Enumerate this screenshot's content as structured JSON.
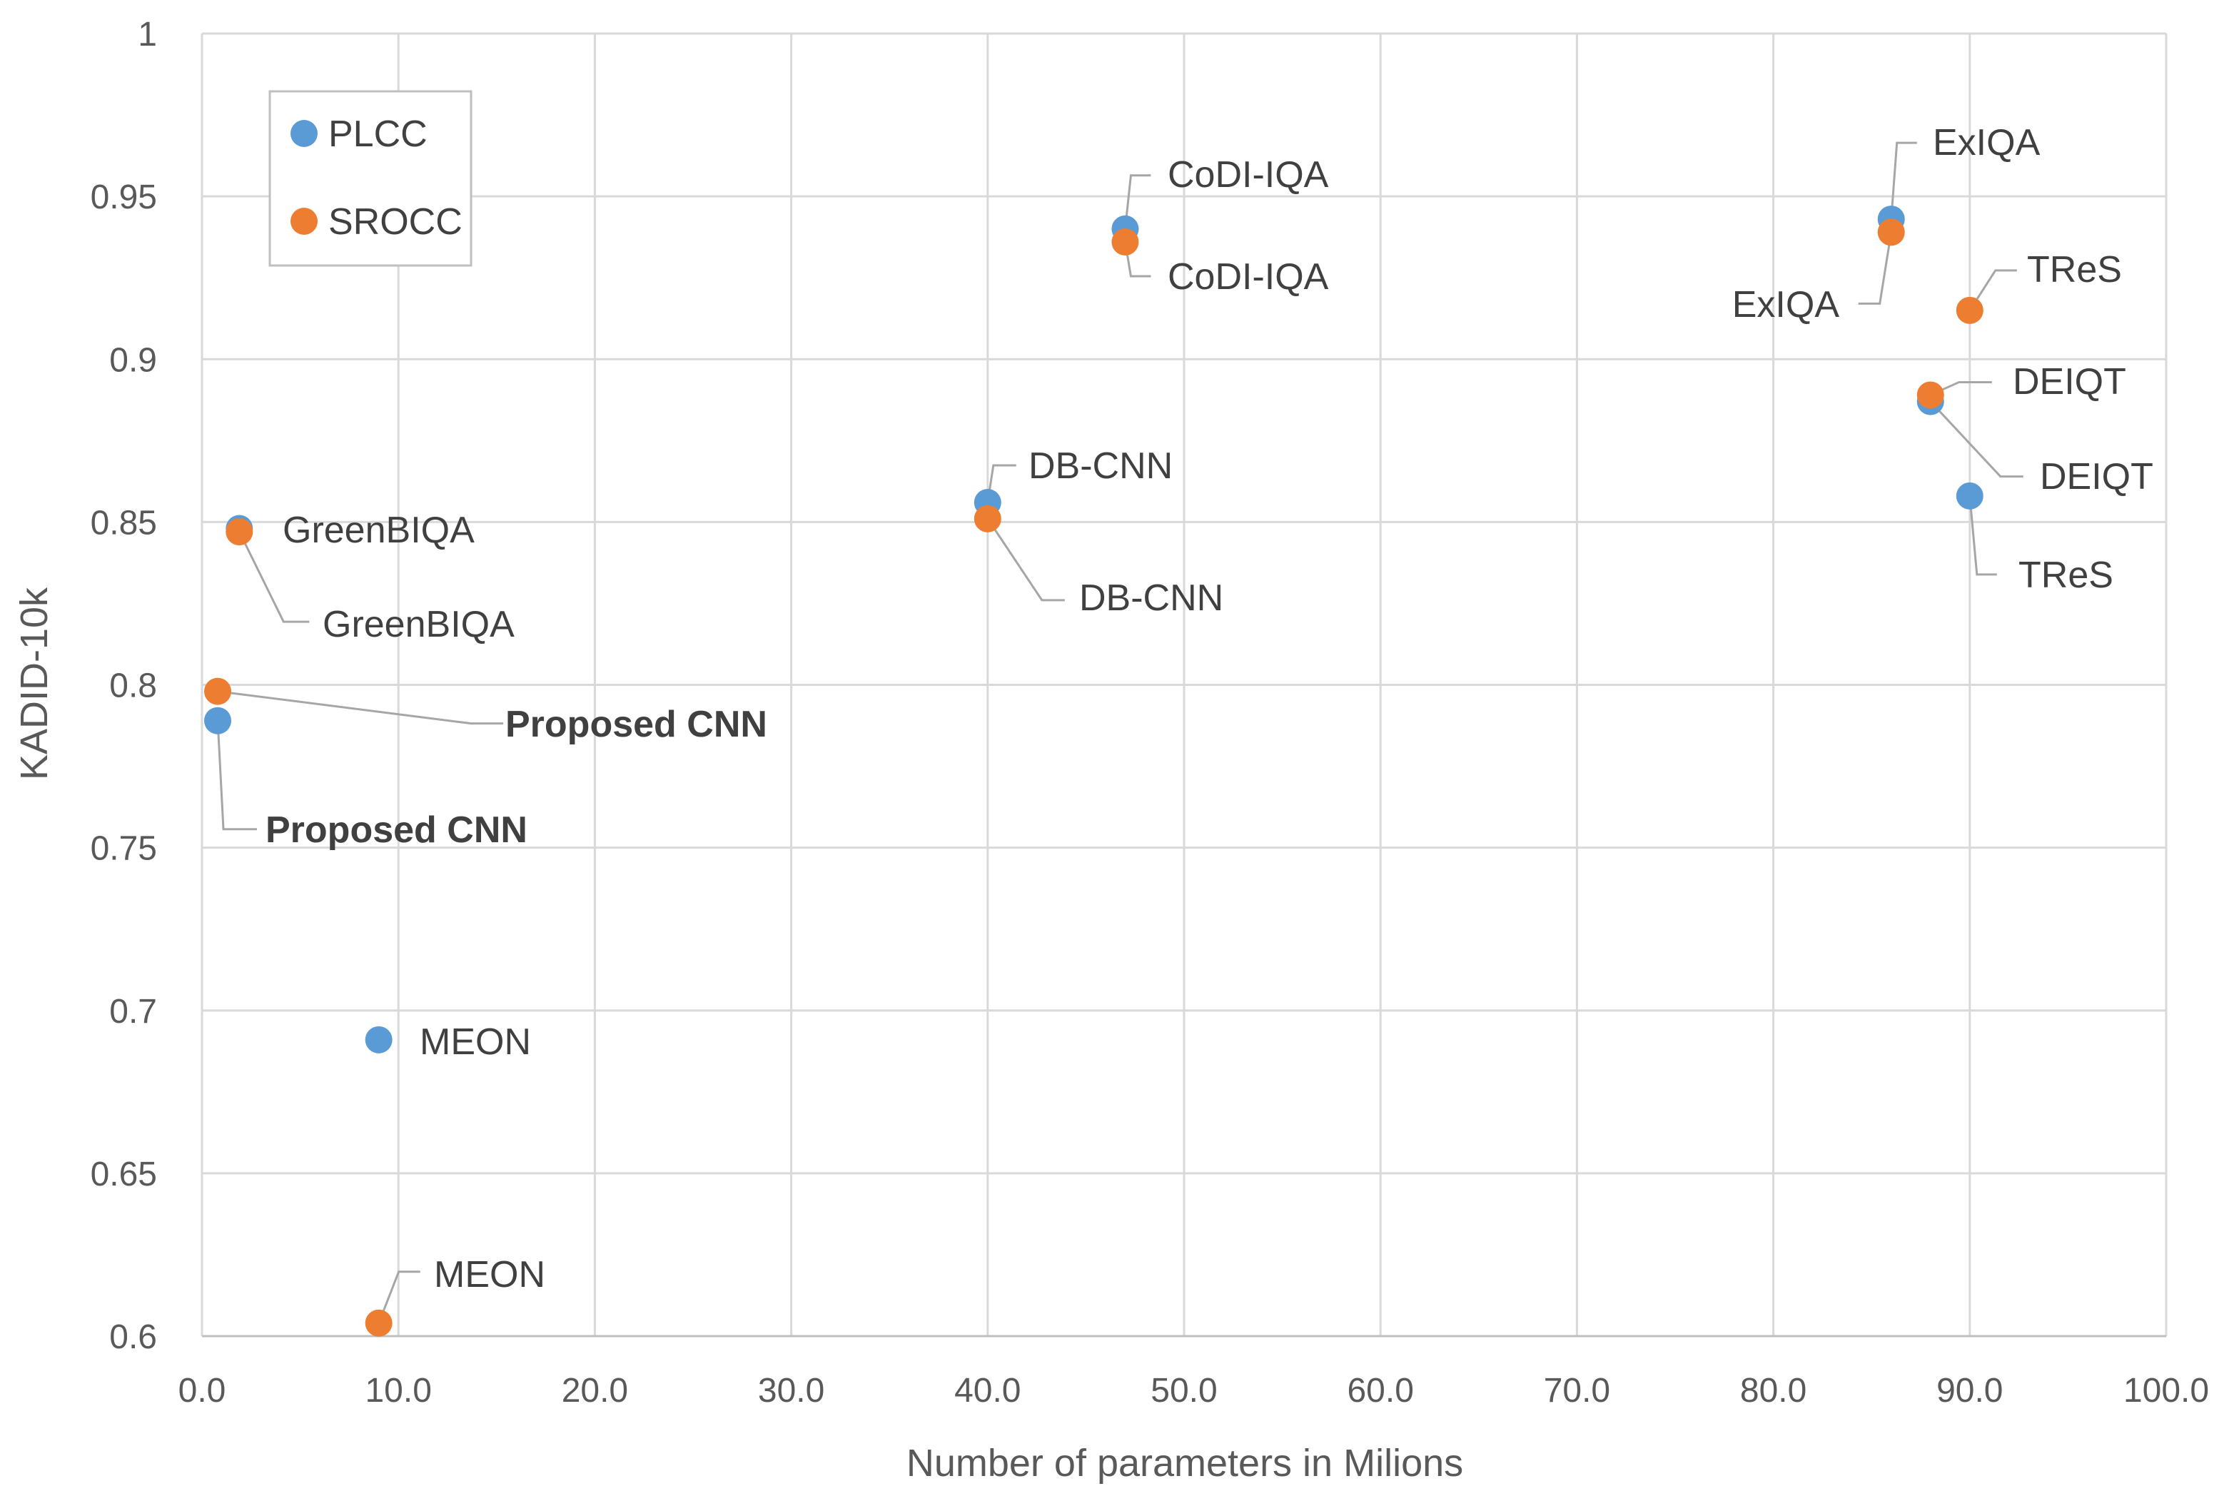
{
  "chart_data": {
    "type": "scatter",
    "title": "",
    "xlabel": "Number of parameters in Milions",
    "ylabel": "KADID-10k",
    "xlim": [
      0,
      100
    ],
    "ylim": [
      0.6,
      1
    ],
    "x_ticks": [
      0,
      10,
      20,
      30,
      40,
      50,
      60,
      70,
      80,
      90,
      100
    ],
    "x_tick_labels": [
      "0.0",
      "10.0",
      "20.0",
      "30.0",
      "40.0",
      "50.0",
      "60.0",
      "70.0",
      "80.0",
      "90.0",
      "100.0"
    ],
    "y_ticks": [
      0.6,
      0.65,
      0.7,
      0.75,
      0.8,
      0.85,
      0.9,
      0.95,
      1
    ],
    "y_tick_labels": [
      "0.6",
      "0.65",
      "0.7",
      "0.75",
      "0.8",
      "0.85",
      "0.9",
      "0.95",
      "1"
    ],
    "grid": true,
    "legend_position": "top-left",
    "colors": {
      "PLCC": "#5B9BD5",
      "SROCC": "#ED7D31",
      "grid": "#D9D9D9",
      "leader": "#A6A6A6"
    },
    "series": [
      {
        "name": "PLCC",
        "points": [
          {
            "label": "Proposed CNN",
            "x": 0.8,
            "y": 0.789,
            "bold": true
          },
          {
            "label": "GreenBIQA",
            "x": 1.9,
            "y": 0.848,
            "bold": false
          },
          {
            "label": "MEON",
            "x": 9.0,
            "y": 0.691,
            "bold": false
          },
          {
            "label": "DB-CNN",
            "x": 40.0,
            "y": 0.856,
            "bold": false
          },
          {
            "label": "CoDI-IQA",
            "x": 47.0,
            "y": 0.94,
            "bold": false
          },
          {
            "label": "ExIQA",
            "x": 86.0,
            "y": 0.943,
            "bold": false
          },
          {
            "label": "DEIQT",
            "x": 88.0,
            "y": 0.887,
            "bold": false
          },
          {
            "label": "TReS",
            "x": 90.0,
            "y": 0.858,
            "bold": false
          }
        ]
      },
      {
        "name": "SROCC",
        "points": [
          {
            "label": "Proposed CNN",
            "x": 0.8,
            "y": 0.798,
            "bold": true
          },
          {
            "label": "GreenBIQA",
            "x": 1.9,
            "y": 0.847,
            "bold": false
          },
          {
            "label": "MEON",
            "x": 9.0,
            "y": 0.604,
            "bold": false
          },
          {
            "label": "DB-CNN",
            "x": 40.0,
            "y": 0.851,
            "bold": false
          },
          {
            "label": "CoDI-IQA",
            "x": 47.0,
            "y": 0.936,
            "bold": false
          },
          {
            "label": "ExIQA",
            "x": 86.0,
            "y": 0.939,
            "bold": false
          },
          {
            "label": "DEIQT",
            "x": 88.0,
            "y": 0.889,
            "bold": false
          },
          {
            "label": "TReS",
            "x": 90.0,
            "y": 0.915,
            "bold": false
          }
        ]
      }
    ]
  }
}
